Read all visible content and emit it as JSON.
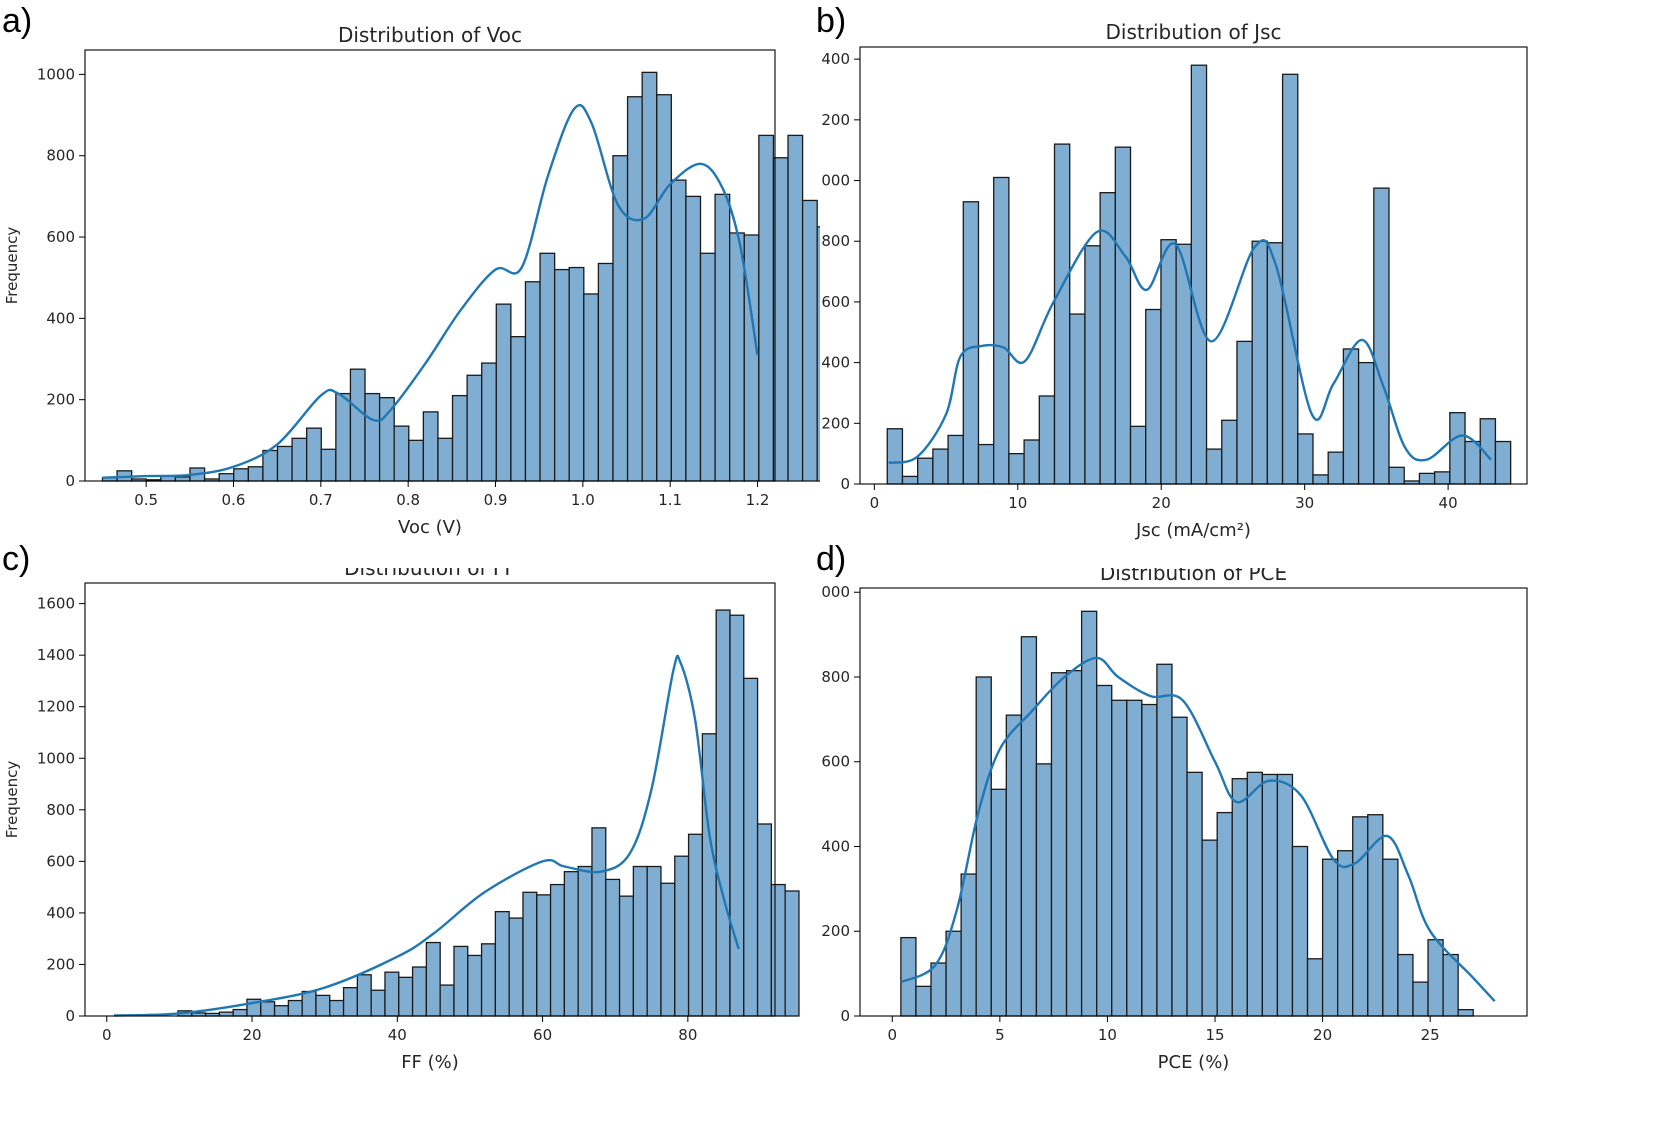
{
  "panels": [
    {
      "label": "a)"
    },
    {
      "label": "b)"
    },
    {
      "label": "c)"
    },
    {
      "label": "d)"
    }
  ],
  "colors": {
    "bar_fill": "#80aed3",
    "bar_edge": "#1a1a1a",
    "kde_line": "#1f77b4"
  },
  "chart_data": [
    {
      "type": "bar",
      "title": "Distribution of Voc",
      "xlabel": "Voc (V)",
      "ylabel": "Frequency",
      "xlim": [
        0.43,
        1.22
      ],
      "ylim": [
        0,
        1060
      ],
      "xticks": [
        0.5,
        0.6,
        0.7,
        0.8,
        0.9,
        1.0,
        1.1,
        1.2
      ],
      "xtick_labels": [
        "0.5",
        "0.6",
        "0.7",
        "0.8",
        "0.9",
        "1.0",
        "1.1",
        "1.2"
      ],
      "yticks": [
        0,
        200,
        400,
        600,
        800,
        1000
      ],
      "ytick_labels": [
        "0",
        "200",
        "400",
        "600",
        "800",
        "1000"
      ],
      "grid": false,
      "bins": {
        "start": 0.45,
        "width": 0.0167
      },
      "values": [
        8,
        25,
        5,
        3,
        12,
        10,
        32,
        5,
        18,
        30,
        35,
        75,
        85,
        105,
        130,
        78,
        215,
        275,
        215,
        205,
        135,
        100,
        170,
        105,
        210,
        260,
        290,
        435,
        355,
        490,
        560,
        520,
        525,
        460,
        535,
        800,
        945,
        1005,
        950,
        740,
        700,
        560,
        705,
        610,
        605,
        850,
        795,
        850,
        690,
        625,
        608
      ],
      "kde": [
        [
          0.45,
          8
        ],
        [
          0.5,
          12
        ],
        [
          0.55,
          15
        ],
        [
          0.6,
          35
        ],
        [
          0.65,
          90
        ],
        [
          0.7,
          210
        ],
        [
          0.72,
          215
        ],
        [
          0.76,
          150
        ],
        [
          0.78,
          175
        ],
        [
          0.82,
          290
        ],
        [
          0.86,
          420
        ],
        [
          0.9,
          520
        ],
        [
          0.93,
          525
        ],
        [
          0.96,
          750
        ],
        [
          0.99,
          915
        ],
        [
          1.01,
          880
        ],
        [
          1.04,
          680
        ],
        [
          1.07,
          645
        ],
        [
          1.1,
          730
        ],
        [
          1.135,
          780
        ],
        [
          1.16,
          720
        ],
        [
          1.18,
          580
        ],
        [
          1.2,
          310
        ]
      ]
    },
    {
      "type": "bar",
      "title": "Distribution of Jsc",
      "xlabel": "Jsc (mA/cm²)",
      "ylabel": "Frequency",
      "xlim": [
        -1.0,
        45.5
      ],
      "ylim": [
        0,
        1440
      ],
      "xticks": [
        0,
        10,
        20,
        30,
        40
      ],
      "xtick_labels": [
        "0",
        "10",
        "20",
        "30",
        "40"
      ],
      "yticks": [
        0,
        200,
        400,
        600,
        800,
        1000,
        1200,
        1400
      ],
      "ytick_labels": [
        "0",
        "200",
        "400",
        "600",
        "800",
        "1000",
        "1200",
        "1400"
      ],
      "grid": false,
      "bins": {
        "start": 0.9,
        "width": 1.06
      },
      "values": [
        182,
        25,
        85,
        115,
        160,
        930,
        130,
        1010,
        100,
        145,
        290,
        1120,
        560,
        785,
        960,
        1110,
        190,
        575,
        805,
        790,
        1380,
        115,
        210,
        470,
        800,
        795,
        1350,
        165,
        30,
        105,
        445,
        400,
        975,
        55,
        10,
        35,
        40,
        235,
        140,
        215,
        140
      ],
      "kde": [
        [
          1,
          70
        ],
        [
          3,
          90
        ],
        [
          5,
          230
        ],
        [
          6,
          420
        ],
        [
          7.5,
          455
        ],
        [
          9,
          450
        ],
        [
          10.5,
          405
        ],
        [
          12.5,
          600
        ],
        [
          15.5,
          830
        ],
        [
          17.5,
          750
        ],
        [
          19,
          640
        ],
        [
          21,
          790
        ],
        [
          23.5,
          470
        ],
        [
          26.5,
          780
        ],
        [
          28,
          720
        ],
        [
          30.5,
          230
        ],
        [
          32,
          330
        ],
        [
          34,
          475
        ],
        [
          35.5,
          320
        ],
        [
          37,
          120
        ],
        [
          38.5,
          80
        ],
        [
          41,
          160
        ],
        [
          43,
          80
        ]
      ]
    },
    {
      "type": "bar",
      "title": "Distribution of FF",
      "xlabel": "FF (%)",
      "ylabel": "Frequency",
      "xlim": [
        -3,
        92
      ],
      "ylim": [
        0,
        1680
      ],
      "xticks": [
        0,
        20,
        40,
        60,
        80
      ],
      "xtick_labels": [
        "0",
        "20",
        "40",
        "60",
        "80"
      ],
      "yticks": [
        0,
        200,
        400,
        600,
        800,
        1000,
        1200,
        1400,
        1600
      ],
      "ytick_labels": [
        "0",
        "200",
        "400",
        "600",
        "800",
        "1000",
        "1200",
        "1400",
        "1600"
      ],
      "grid": false,
      "bins": {
        "start": 9.8,
        "width": 1.9
      },
      "values": [
        20,
        12,
        10,
        15,
        25,
        65,
        55,
        40,
        60,
        95,
        80,
        60,
        110,
        160,
        100,
        170,
        150,
        190,
        285,
        120,
        270,
        235,
        280,
        405,
        380,
        480,
        470,
        510,
        560,
        580,
        730,
        530,
        465,
        580,
        580,
        515,
        620,
        705,
        1095,
        1575,
        1555,
        1310,
        745,
        510,
        485
      ],
      "kde": [
        [
          1,
          2
        ],
        [
          10,
          10
        ],
        [
          20,
          50
        ],
        [
          30,
          110
        ],
        [
          40,
          230
        ],
        [
          45,
          320
        ],
        [
          52,
          480
        ],
        [
          60,
          600
        ],
        [
          63,
          580
        ],
        [
          68,
          560
        ],
        [
          72,
          630
        ],
        [
          75,
          880
        ],
        [
          78,
          1340
        ],
        [
          79,
          1370
        ],
        [
          81,
          1150
        ],
        [
          83,
          700
        ],
        [
          85,
          450
        ],
        [
          87,
          260
        ]
      ]
    },
    {
      "type": "bar",
      "title": "Distribution of PCE",
      "xlabel": "PCE (%)",
      "ylabel": "Frequency",
      "xlim": [
        -1.5,
        29.5
      ],
      "ylim": [
        0,
        1010
      ],
      "xticks": [
        0,
        5,
        10,
        15,
        20,
        25
      ],
      "xtick_labels": [
        "0",
        "5",
        "10",
        "15",
        "20",
        "25"
      ],
      "yticks": [
        0,
        200,
        400,
        600,
        800,
        1000
      ],
      "ytick_labels": [
        "0",
        "200",
        "400",
        "600",
        "800",
        "1000"
      ],
      "grid": false,
      "bins": {
        "start": 0.4,
        "width": 0.7
      },
      "values": [
        185,
        70,
        125,
        200,
        335,
        800,
        535,
        710,
        895,
        595,
        810,
        815,
        955,
        780,
        745,
        745,
        735,
        830,
        705,
        575,
        415,
        480,
        560,
        575,
        570,
        570,
        400,
        135,
        370,
        390,
        470,
        475,
        370,
        145,
        80,
        180,
        145,
        15
      ],
      "kde": [
        [
          0.4,
          80
        ],
        [
          2,
          120
        ],
        [
          3,
          250
        ],
        [
          4,
          480
        ],
        [
          5,
          630
        ],
        [
          6.5,
          720
        ],
        [
          8,
          800
        ],
        [
          9.5,
          845
        ],
        [
          10.5,
          800
        ],
        [
          12,
          755
        ],
        [
          13.5,
          745
        ],
        [
          15,
          600
        ],
        [
          16,
          505
        ],
        [
          17.5,
          555
        ],
        [
          19,
          520
        ],
        [
          20.5,
          370
        ],
        [
          21.5,
          360
        ],
        [
          23,
          425
        ],
        [
          24,
          330
        ],
        [
          25,
          200
        ],
        [
          27,
          90
        ],
        [
          28,
          35
        ]
      ]
    }
  ]
}
